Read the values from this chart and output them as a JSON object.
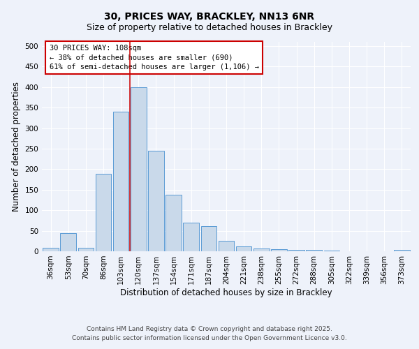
{
  "title_line1": "30, PRICES WAY, BRACKLEY, NN13 6NR",
  "title_line2": "Size of property relative to detached houses in Brackley",
  "xlabel": "Distribution of detached houses by size in Brackley",
  "ylabel": "Number of detached properties",
  "categories": [
    "36sqm",
    "53sqm",
    "70sqm",
    "86sqm",
    "103sqm",
    "120sqm",
    "137sqm",
    "154sqm",
    "171sqm",
    "187sqm",
    "204sqm",
    "221sqm",
    "238sqm",
    "255sqm",
    "272sqm",
    "288sqm",
    "305sqm",
    "322sqm",
    "339sqm",
    "356sqm",
    "373sqm"
  ],
  "values": [
    8,
    45,
    8,
    188,
    340,
    400,
    245,
    137,
    70,
    62,
    25,
    12,
    6,
    5,
    3,
    3,
    2,
    0,
    0,
    0,
    3
  ],
  "bar_color": "#c9d9ea",
  "bar_edge_color": "#5b9bd5",
  "red_line_x": 4.5,
  "annotation_text": "30 PRICES WAY: 108sqm\n← 38% of detached houses are smaller (690)\n61% of semi-detached houses are larger (1,106) →",
  "annotation_box_color": "#ffffff",
  "annotation_box_edge_color": "#cc0000",
  "ylim": [
    0,
    510
  ],
  "yticks": [
    0,
    50,
    100,
    150,
    200,
    250,
    300,
    350,
    400,
    450,
    500
  ],
  "background_color": "#eef2fa",
  "grid_color": "#ffffff",
  "footer_line1": "Contains HM Land Registry data © Crown copyright and database right 2025.",
  "footer_line2": "Contains public sector information licensed under the Open Government Licence v3.0.",
  "title_fontsize": 10,
  "subtitle_fontsize": 9,
  "axis_label_fontsize": 8.5,
  "tick_fontsize": 7.5,
  "annotation_fontsize": 7.5,
  "footer_fontsize": 6.5
}
